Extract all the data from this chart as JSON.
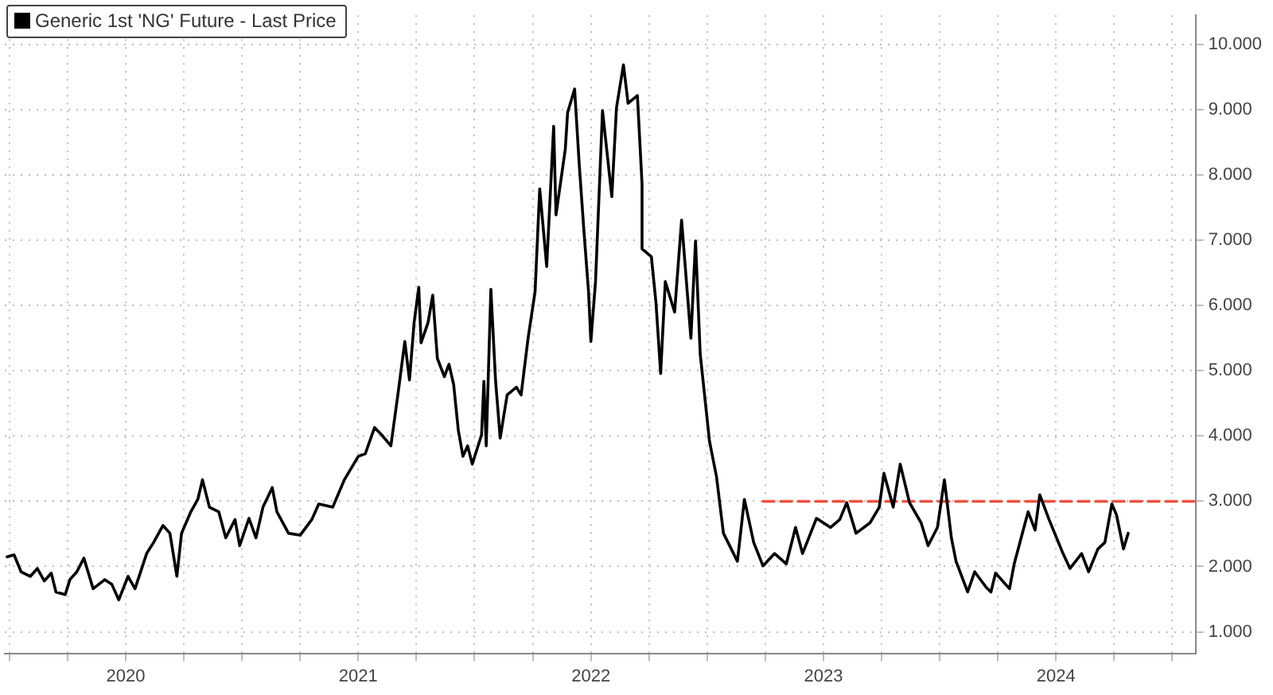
{
  "chart_data": {
    "type": "line",
    "x": [
      2019.99,
      2020.02,
      2020.05,
      2020.09,
      2020.12,
      2020.15,
      2020.18,
      2020.2,
      2020.24,
      2020.26,
      2020.29,
      2020.32,
      2020.36,
      2020.41,
      2020.44,
      2020.47,
      2020.51,
      2020.54,
      2020.59,
      2020.62,
      2020.66,
      2020.69,
      2020.72,
      2020.74,
      2020.78,
      2020.81,
      2020.83,
      2020.86,
      2020.9,
      2020.93,
      2020.97,
      2020.99,
      2021.03,
      2021.06,
      2021.09,
      2021.13,
      2021.15,
      2021.2,
      2021.25,
      2021.3,
      2021.33,
      2021.39,
      2021.44,
      2021.5,
      2021.53,
      2021.57,
      2021.6,
      2021.64,
      2021.67,
      2021.7,
      2021.72,
      2021.74,
      2021.76,
      2021.77,
      2021.8,
      2021.82,
      2021.84,
      2021.87,
      2021.89,
      2021.91,
      2021.93,
      2021.95,
      2021.97,
      2021.99,
      2022.03,
      2022.04,
      2022.05,
      2022.07,
      2022.09,
      2022.11,
      2022.14,
      2022.18,
      2022.2,
      2022.23,
      2022.26,
      2022.28,
      2022.31,
      2022.34,
      2022.35,
      2022.39,
      2022.4,
      2022.43,
      2022.45,
      2022.47,
      2022.49,
      2022.5,
      2022.52,
      2022.55,
      2022.59,
      2022.61,
      2022.64,
      2022.66,
      2022.7,
      2022.72,
      2022.72,
      2022.76,
      2022.78,
      2022.8,
      2022.82,
      2022.86,
      2022.89,
      2022.93,
      2022.95,
      2022.97,
      2023.01,
      2023.04,
      2023.07,
      2023.13,
      2023.16,
      2023.2,
      2023.24,
      2023.29,
      2023.34,
      2023.38,
      2023.41,
      2023.47,
      2023.53,
      2023.57,
      2023.6,
      2023.64,
      2023.7,
      2023.74,
      2023.76,
      2023.8,
      2023.83,
      2023.87,
      2023.92,
      2023.95,
      2023.99,
      2024.02,
      2024.05,
      2024.07,
      2024.12,
      2024.15,
      2024.2,
      2024.22,
      2024.24,
      2024.3,
      2024.32,
      2024.38,
      2024.41,
      2024.43,
      2024.47,
      2024.53,
      2024.56,
      2024.61,
      2024.64,
      2024.68,
      2024.71,
      2024.74,
      2024.76,
      2024.79,
      2024.81
    ],
    "series": [
      {
        "name": "Generic 1st 'NG' Future - Last Price",
        "color": "#000000",
        "values": [
          2.15,
          2.18,
          1.92,
          1.85,
          1.97,
          1.78,
          1.9,
          1.61,
          1.57,
          1.8,
          1.92,
          2.13,
          1.66,
          1.8,
          1.73,
          1.49,
          1.85,
          1.66,
          2.2,
          2.37,
          2.63,
          2.51,
          1.85,
          2.51,
          2.84,
          3.03,
          3.33,
          2.91,
          2.84,
          2.44,
          2.72,
          2.32,
          2.74,
          2.44,
          2.91,
          3.21,
          2.84,
          2.51,
          2.48,
          2.72,
          2.96,
          2.91,
          3.33,
          3.69,
          3.73,
          4.13,
          4.02,
          3.85,
          4.63,
          5.45,
          4.86,
          5.74,
          6.28,
          5.43,
          5.74,
          6.16,
          5.19,
          4.91,
          5.1,
          4.79,
          4.09,
          3.69,
          3.85,
          3.57,
          4.02,
          4.84,
          3.85,
          6.25,
          4.86,
          3.97,
          4.63,
          4.75,
          4.63,
          5.5,
          6.21,
          7.79,
          6.6,
          8.75,
          7.39,
          8.4,
          8.96,
          9.32,
          8.16,
          7.15,
          6.21,
          5.45,
          6.37,
          8.99,
          7.67,
          9.03,
          9.69,
          9.1,
          9.22,
          7.86,
          6.87,
          6.75,
          6.04,
          4.96,
          6.37,
          5.9,
          7.31,
          5.5,
          6.99,
          5.26,
          3.92,
          3.38,
          2.51,
          2.08,
          3.03,
          2.37,
          2.01,
          2.2,
          2.04,
          2.6,
          2.2,
          2.74,
          2.6,
          2.72,
          2.98,
          2.51,
          2.67,
          2.91,
          3.43,
          2.91,
          3.57,
          2.98,
          2.67,
          2.32,
          2.6,
          3.33,
          2.44,
          2.08,
          1.61,
          1.92,
          1.68,
          1.61,
          1.9,
          1.66,
          2.04,
          2.84,
          2.56,
          3.1,
          2.72,
          2.2,
          1.97,
          2.2,
          1.92,
          2.27,
          2.37,
          2.96,
          2.79,
          2.27,
          2.51
        ]
      },
      {
        "type": "line",
        "color": "#f0503c",
        "line_style": "dashed",
        "x": [
          2023.24,
          2025.1
        ],
        "values": [
          3,
          3
        ]
      }
    ],
    "xlim": [
      2019.98,
      2025.1
    ],
    "xticks": [
      {
        "value": 2020,
        "label": null
      },
      {
        "value": 2020.25,
        "label": null
      },
      {
        "value": 2020.5,
        "label": "2020"
      },
      {
        "value": 2020.75,
        "label": null
      },
      {
        "value": 2021,
        "label": null
      },
      {
        "value": 2021.25,
        "label": null
      },
      {
        "value": 2021.5,
        "label": "2021"
      },
      {
        "value": 2021.75,
        "label": null
      },
      {
        "value": 2022,
        "label": null
      },
      {
        "value": 2022.25,
        "label": null
      },
      {
        "value": 2022.5,
        "label": "2022"
      },
      {
        "value": 2022.75,
        "label": null
      },
      {
        "value": 2023,
        "label": null
      },
      {
        "value": 2023.25,
        "label": null
      },
      {
        "value": 2023.5,
        "label": "2023"
      },
      {
        "value": 2023.75,
        "label": null
      },
      {
        "value": 2024,
        "label": null
      },
      {
        "value": 2024.25,
        "label": null
      },
      {
        "value": 2024.5,
        "label": "2024"
      },
      {
        "value": 2024.75,
        "label": null
      },
      {
        "value": 2025,
        "label": null
      }
    ],
    "ylim": [
      0.67,
      10.45
    ],
    "yticks": [
      {
        "value": 1,
        "label": "1.000"
      },
      {
        "value": 2,
        "label": "2.000"
      },
      {
        "value": 3,
        "label": "3.000"
      },
      {
        "value": 4,
        "label": "4.000"
      },
      {
        "value": 5,
        "label": "5.000"
      },
      {
        "value": 6,
        "label": "6.000"
      },
      {
        "value": 7,
        "label": "7.000"
      },
      {
        "value": 8,
        "label": "8.000"
      },
      {
        "value": 9,
        "label": "9.000"
      },
      {
        "value": 10,
        "label": "10.000"
      }
    ],
    "grid": true,
    "legend": "top left",
    "marker": "none",
    "line_style": "solid"
  }
}
